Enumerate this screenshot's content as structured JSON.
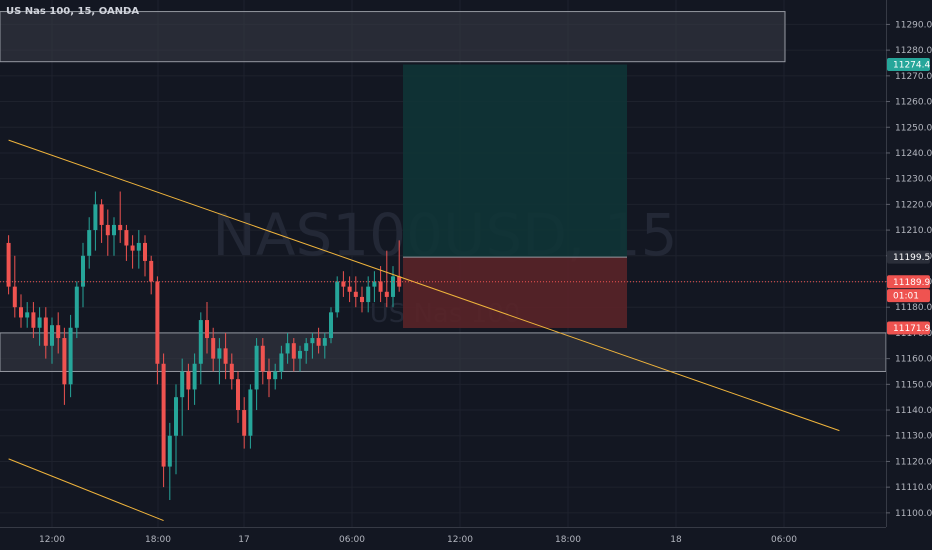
{
  "symbol": {
    "title": "US Nas 100, 15, OANDA"
  },
  "watermark": {
    "ticker": "NAS100USD, 15",
    "name": "US Nas 100"
  },
  "colors": {
    "background": "#131722",
    "up": "#26a69a",
    "down": "#ef5350",
    "zone": "#3a3d47",
    "trendline": "#f0b43c",
    "profit": "#0f3436",
    "stop": "#5a2428",
    "grid": "#1e222d"
  },
  "chart_data": {
    "type": "candlestick",
    "ylim": [
      11095,
      11300
    ],
    "yticks": [
      11100,
      11110,
      11120,
      11130,
      11140,
      11150,
      11160,
      11170,
      11180,
      11190,
      11200,
      11210,
      11220,
      11230,
      11240,
      11250,
      11260,
      11270,
      11280,
      11290
    ],
    "xtick_labels": [
      "12:00",
      "18:00",
      "17",
      "06:00",
      "12:00",
      "18:00",
      "18",
      "06:00"
    ],
    "price_badges": [
      {
        "label": "11274.4",
        "price": 11274.4,
        "color": "#26a69a"
      },
      {
        "label": "11199.5",
        "price": 11199.5,
        "color": "#2a2e39"
      },
      {
        "label": "11189.9",
        "price": 11189.9,
        "color": "#ef5350"
      },
      {
        "label": "01:01",
        "price": 11184.5,
        "color": "#ef5350"
      },
      {
        "label": "11171.9",
        "price": 11171.9,
        "color": "#ef5350"
      }
    ],
    "current_price": 11189.9,
    "zones": [
      {
        "from": 11275.5,
        "to": 11295
      },
      {
        "from": 11155,
        "to": 11170
      }
    ],
    "position": {
      "entry": 11199.5,
      "target": 11274.4,
      "stop": 11171.9
    },
    "trendlines": [
      {
        "from": [
          0,
          11245
        ],
        "to": [
          134,
          11132
        ]
      },
      {
        "from": [
          0,
          11121
        ],
        "to": [
          25,
          11097
        ]
      }
    ],
    "candles": [
      [
        11205,
        11208,
        11185,
        11188
      ],
      [
        11188,
        11200,
        11176,
        11180
      ],
      [
        11180,
        11185,
        11172,
        11176
      ],
      [
        11176,
        11182,
        11172,
        11178
      ],
      [
        11178,
        11182,
        11168,
        11172
      ],
      [
        11172,
        11180,
        11165,
        11176
      ],
      [
        11176,
        11180,
        11160,
        11165
      ],
      [
        11165,
        11176,
        11158,
        11173
      ],
      [
        11173,
        11178,
        11162,
        11168
      ],
      [
        11168,
        11172,
        11142,
        11150
      ],
      [
        11150,
        11177,
        11145,
        11172
      ],
      [
        11172,
        11190,
        11168,
        11188
      ],
      [
        11188,
        11205,
        11180,
        11200
      ],
      [
        11200,
        11215,
        11195,
        11210
      ],
      [
        11210,
        11225,
        11202,
        11220
      ],
      [
        11220,
        11222,
        11205,
        11212
      ],
      [
        11212,
        11218,
        11200,
        11208
      ],
      [
        11208,
        11215,
        11200,
        11212
      ],
      [
        11212,
        11225,
        11205,
        11210
      ],
      [
        11210,
        11212,
        11198,
        11204
      ],
      [
        11204,
        11208,
        11195,
        11202
      ],
      [
        11202,
        11210,
        11195,
        11205
      ],
      [
        11205,
        11208,
        11192,
        11198
      ],
      [
        11198,
        11200,
        11185,
        11190
      ],
      [
        11190,
        11192,
        11150,
        11158
      ],
      [
        11158,
        11162,
        11110,
        11118
      ],
      [
        11118,
        11135,
        11105,
        11130
      ],
      [
        11130,
        11150,
        11115,
        11145
      ],
      [
        11145,
        11160,
        11130,
        11155
      ],
      [
        11155,
        11158,
        11140,
        11148
      ],
      [
        11148,
        11162,
        11142,
        11158
      ],
      [
        11158,
        11178,
        11150,
        11175
      ],
      [
        11175,
        11182,
        11162,
        11168
      ],
      [
        11168,
        11172,
        11155,
        11160
      ],
      [
        11160,
        11168,
        11150,
        11164
      ],
      [
        11164,
        11170,
        11152,
        11158
      ],
      [
        11158,
        11162,
        11148,
        11152
      ],
      [
        11152,
        11155,
        11135,
        11140
      ],
      [
        11140,
        11145,
        11125,
        11130
      ],
      [
        11130,
        11150,
        11125,
        11148
      ],
      [
        11148,
        11168,
        11140,
        11165
      ],
      [
        11165,
        11168,
        11150,
        11155
      ],
      [
        11155,
        11160,
        11145,
        11152
      ],
      [
        11152,
        11158,
        11148,
        11155
      ],
      [
        11155,
        11165,
        11152,
        11162
      ],
      [
        11162,
        11170,
        11158,
        11166
      ],
      [
        11166,
        11168,
        11155,
        11160
      ],
      [
        11160,
        11165,
        11155,
        11163
      ],
      [
        11163,
        11168,
        11158,
        11166
      ],
      [
        11166,
        11170,
        11160,
        11168
      ],
      [
        11168,
        11172,
        11162,
        11165
      ],
      [
        11165,
        11170,
        11160,
        11168
      ],
      [
        11168,
        11180,
        11166,
        11178
      ],
      [
        11178,
        11192,
        11176,
        11190
      ],
      [
        11190,
        11194,
        11184,
        11188
      ],
      [
        11188,
        11192,
        11182,
        11186
      ],
      [
        11186,
        11192,
        11180,
        11184
      ],
      [
        11184,
        11188,
        11178,
        11182
      ],
      [
        11182,
        11192,
        11178,
        11188
      ],
      [
        11188,
        11194,
        11182,
        11190
      ],
      [
        11190,
        11196,
        11182,
        11186
      ],
      [
        11186,
        11202,
        11180,
        11184
      ],
      [
        11184,
        11196,
        11180,
        11192
      ],
      [
        11192,
        11206,
        11186,
        11188
      ]
    ]
  }
}
